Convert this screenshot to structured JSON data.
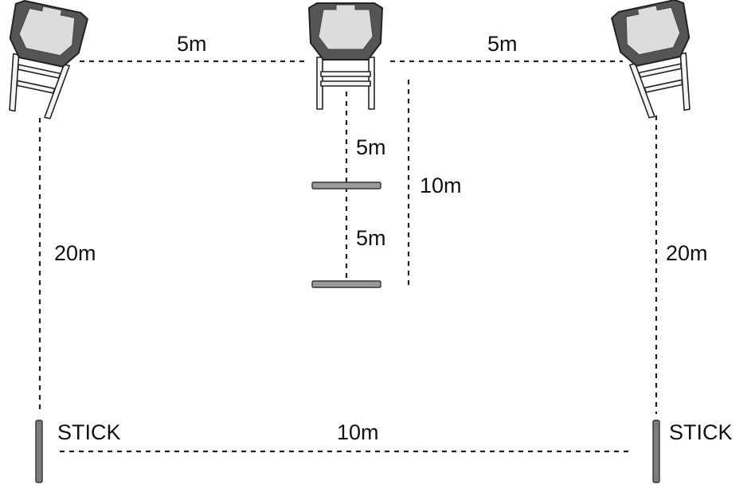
{
  "labels": {
    "top_left_gap": "5m",
    "top_right_gap": "5m",
    "center_upper": "5m",
    "center_lower": "5m",
    "center_total": "10m",
    "left_depth": "20m",
    "right_depth": "20m",
    "bottom_gap": "10m",
    "stick_left": "STICK",
    "stick_right": "STICK"
  },
  "colors": {
    "line": "#222222",
    "target_frame": "#555555",
    "target_face": "#dcdcdc",
    "bar": "#9a9a9a",
    "stick": "#7c7c7c"
  },
  "icons": [
    "target-stand-icon",
    "stick-icon",
    "barrier-bar-icon"
  ]
}
